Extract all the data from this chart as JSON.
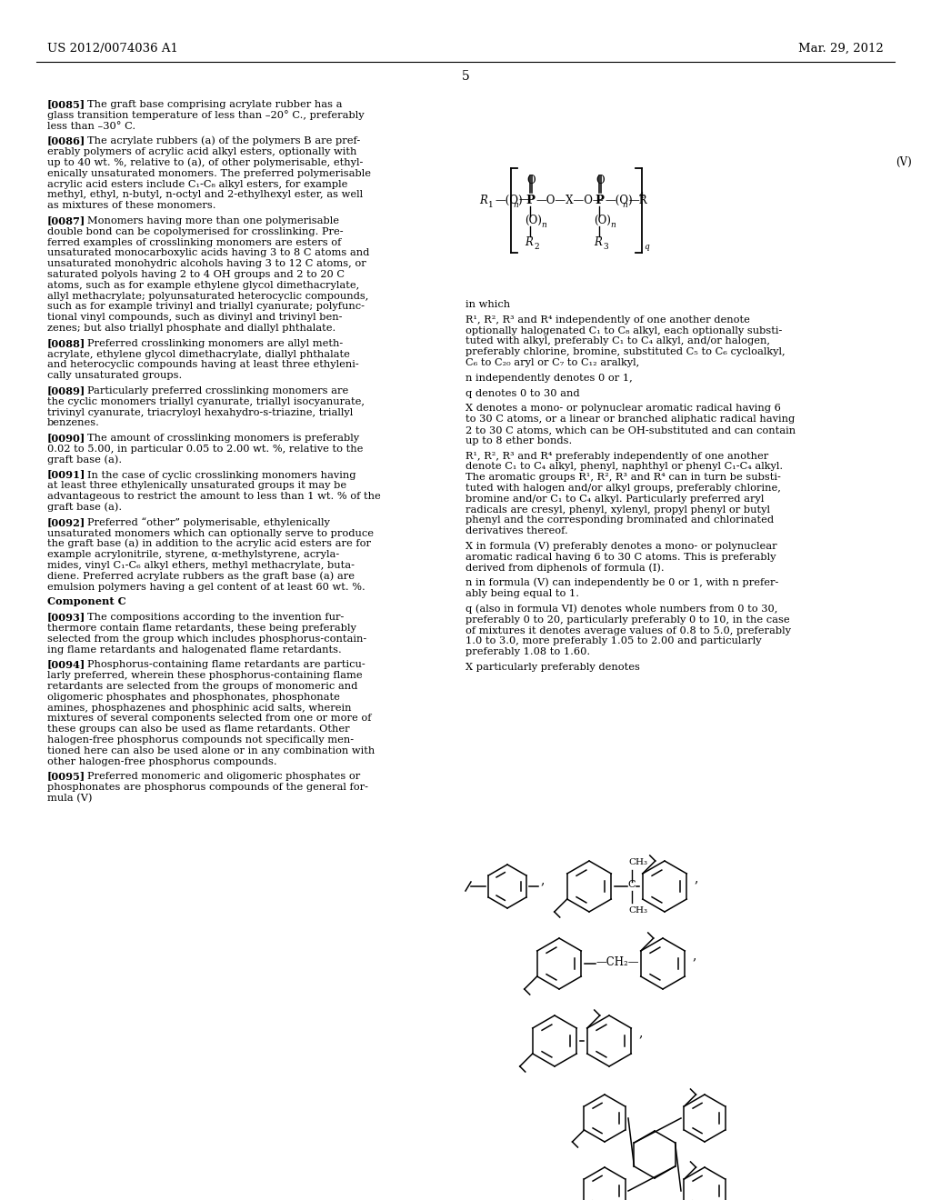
{
  "page_number": "5",
  "header_left": "US 2012/0074036 A1",
  "header_right": "Mar. 29, 2012",
  "bg": "#ffffff",
  "fg": "#000000",
  "left_paragraphs": [
    {
      "tag": "[0085]",
      "lines": [
        "The graft base comprising acrylate rubber has a",
        "glass transition temperature of less than –20° C., preferably",
        "less than –30° C."
      ]
    },
    {
      "tag": "[0086]",
      "lines": [
        "The acrylate rubbers (a) of the polymers B are pref-",
        "erably polymers of acrylic acid alkyl esters, optionally with",
        "up to 40 wt. %, relative to (a), of other polymerisable, ethyl-",
        "enically unsaturated monomers. The preferred polymerisable",
        "acrylic acid esters include C₁-C₈ alkyl esters, for example",
        "methyl, ethyl, n-butyl, n-octyl and 2-ethylhexyl ester, as well",
        "as mixtures of these monomers."
      ]
    },
    {
      "tag": "[0087]",
      "lines": [
        "Monomers having more than one polymerisable",
        "double bond can be copolymerised for crosslinking. Pre-",
        "ferred examples of crosslinking monomers are esters of",
        "unsaturated monocarboxylic acids having 3 to 8 C atoms and",
        "unsaturated monohydric alcohols having 3 to 12 C atoms, or",
        "saturated polyols having 2 to 4 OH groups and 2 to 20 C",
        "atoms, such as for example ethylene glycol dimethacrylate,",
        "allyl methacrylate; polyunsaturated heterocyclic compounds,",
        "such as for example trivinyl and triallyl cyanurate; polyfunc-",
        "tional vinyl compounds, such as divinyl and trivinyl ben-",
        "zenes; but also triallyl phosphate and diallyl phthalate."
      ]
    },
    {
      "tag": "[0088]",
      "lines": [
        "Preferred crosslinking monomers are allyl meth-",
        "acrylate, ethylene glycol dimethacrylate, diallyl phthalate",
        "and heterocyclic compounds having at least three ethyleni-",
        "cally unsaturated groups."
      ]
    },
    {
      "tag": "[0089]",
      "lines": [
        "Particularly preferred crosslinking monomers are",
        "the cyclic monomers triallyl cyanurate, triallyl isocyanurate,",
        "trivinyl cyanurate, triacryloyl hexahydro-s-triazine, triallyl",
        "benzenes."
      ]
    },
    {
      "tag": "[0090]",
      "lines": [
        "The amount of crosslinking monomers is preferably",
        "0.02 to 5.00, in particular 0.05 to 2.00 wt. %, relative to the",
        "graft base (a)."
      ]
    },
    {
      "tag": "[0091]",
      "lines": [
        "In the case of cyclic crosslinking monomers having",
        "at least three ethylenically unsaturated groups it may be",
        "advantageous to restrict the amount to less than 1 wt. % of the",
        "graft base (a)."
      ]
    },
    {
      "tag": "[0092]",
      "lines": [
        "Preferred “other” polymerisable, ethylenically",
        "unsaturated monomers which can optionally serve to produce",
        "the graft base (a) in addition to the acrylic acid esters are for",
        "example acrylonitrile, styrene, α-methylstyrene, acryla-",
        "mides, vinyl C₁-C₆ alkyl ethers, methyl methacrylate, buta-",
        "diene. Preferred acrylate rubbers as the graft base (a) are",
        "emulsion polymers having a gel content of at least 60 wt. %."
      ]
    },
    {
      "tag": "Component C",
      "lines": []
    },
    {
      "tag": "[0093]",
      "lines": [
        "The compositions according to the invention fur-",
        "thermore contain flame retardants, these being preferably",
        "selected from the group which includes phosphorus-contain-",
        "ing flame retardants and halogenated flame retardants."
      ]
    },
    {
      "tag": "[0094]",
      "lines": [
        "Phosphorus-containing flame retardants are particu-",
        "larly preferred, wherein these phosphorus-containing flame",
        "retardants are selected from the groups of monomeric and",
        "oligomeric phosphates and phosphonates, phosphonate",
        "amines, phosphazenes and phosphinic acid salts, wherein",
        "mixtures of several components selected from one or more of",
        "these groups can also be used as flame retardants. Other",
        "halogen-free phosphorus compounds not specifically men-",
        "tioned here can also be used alone or in any combination with",
        "other halogen-free phosphorus compounds."
      ]
    },
    {
      "tag": "[0095]",
      "lines": [
        "Preferred monomeric and oligomeric phosphates or",
        "phosphonates are phosphorus compounds of the general for-",
        "mula (V)"
      ]
    }
  ],
  "right_paragraphs_after_formula": [
    {
      "lines": [
        "in which"
      ]
    },
    {
      "lines": [
        "R¹, R², R³ and R⁴ independently of one another denote",
        "optionally halogenated C₁ to C₈ alkyl, each optionally substi-",
        "tuted with alkyl, preferably C₁ to C₄ alkyl, and/or halogen,",
        "preferably chlorine, bromine, substituted C₅ to C₆ cycloalkyl,",
        "C₆ to C₂₀ aryl or C₇ to C₁₂ aralkyl,"
      ]
    },
    {
      "lines": [
        "n independently denotes 0 or 1,"
      ]
    },
    {
      "lines": [
        "q denotes 0 to 30 and"
      ]
    },
    {
      "lines": [
        "X denotes a mono- or polynuclear aromatic radical having 6",
        "to 30 C atoms, or a linear or branched aliphatic radical having",
        "2 to 30 C atoms, which can be OH-substituted and can contain",
        "up to 8 ether bonds."
      ]
    },
    {
      "lines": [
        "R¹, R², R³ and R⁴ preferably independently of one another",
        "denote C₁ to C₄ alkyl, phenyl, naphthyl or phenyl C₁-C₄ alkyl.",
        "The aromatic groups R¹, R², R³ and R⁴ can in turn be substi-",
        "tuted with halogen and/or alkyl groups, preferably chlorine,",
        "bromine and/or C₁ to C₄ alkyl. Particularly preferred aryl",
        "radicals are cresyl, phenyl, xylenyl, propyl phenyl or butyl",
        "phenyl and the corresponding brominated and chlorinated",
        "derivatives thereof."
      ]
    },
    {
      "lines": [
        "X in formula (V) preferably denotes a mono- or polynuclear",
        "aromatic radical having 6 to 30 C atoms. This is preferably",
        "derived from diphenols of formula (I)."
      ]
    },
    {
      "lines": [
        "n in formula (V) can independently be 0 or 1, with n prefer-",
        "ably being equal to 1."
      ]
    },
    {
      "lines": [
        "q (also in formula VI) denotes whole numbers from 0 to 30,",
        "preferably 0 to 20, particularly preferably 0 to 10, in the case",
        "of mixtures it denotes average values of 0.8 to 5.0, preferably",
        "1.0 to 3.0, more preferably 1.05 to 2.00 and particularly",
        "preferably 1.08 to 1.60."
      ]
    },
    {
      "lines": [
        "X particularly preferably denotes"
      ]
    }
  ]
}
